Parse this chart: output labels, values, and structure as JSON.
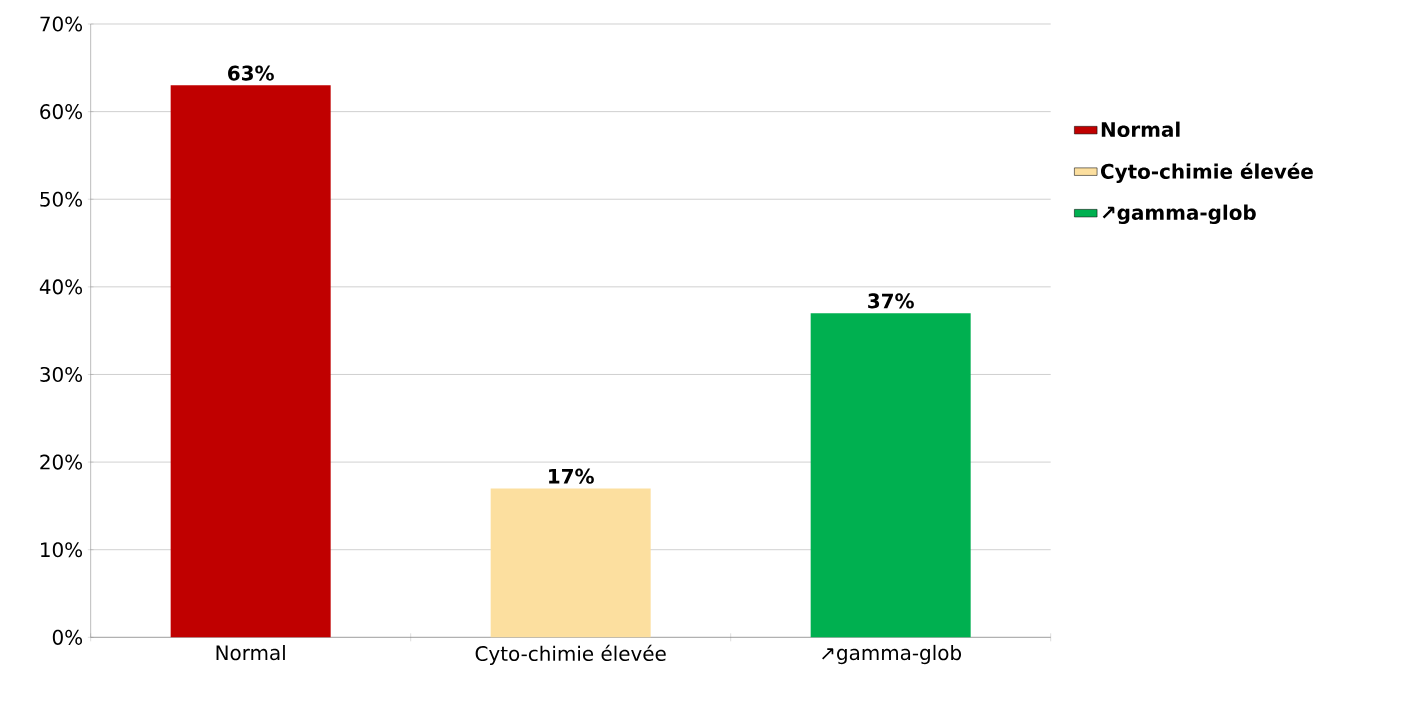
{
  "chart_data": {
    "type": "bar",
    "categories": [
      "Normal",
      "Cyto-chimie élevée",
      "↗gamma-glob"
    ],
    "series": [
      {
        "name": "Normal",
        "color": "#c00000",
        "values": [
          63,
          null,
          null
        ],
        "value_labels": [
          "63%",
          null,
          null
        ]
      },
      {
        "name": "Cyto-chimie élevée",
        "color": "#fcdf9f",
        "values": [
          null,
          17,
          null
        ],
        "value_labels": [
          null,
          "17%",
          null
        ]
      },
      {
        "name": "↗gamma-glob",
        "color": "#00b050",
        "values": [
          null,
          null,
          37
        ],
        "value_labels": [
          null,
          null,
          "37%"
        ]
      }
    ],
    "ylim": [
      0,
      70
    ],
    "yticks": [
      {
        "value": 0,
        "label": "0%"
      },
      {
        "value": 10,
        "label": "10%"
      },
      {
        "value": 20,
        "label": "20%"
      },
      {
        "value": 30,
        "label": "30%"
      },
      {
        "value": 40,
        "label": "40%"
      },
      {
        "value": 50,
        "label": "50%"
      },
      {
        "value": 60,
        "label": "60%"
      },
      {
        "value": 70,
        "label": "70%"
      }
    ],
    "grid": "y",
    "legend": "right"
  }
}
